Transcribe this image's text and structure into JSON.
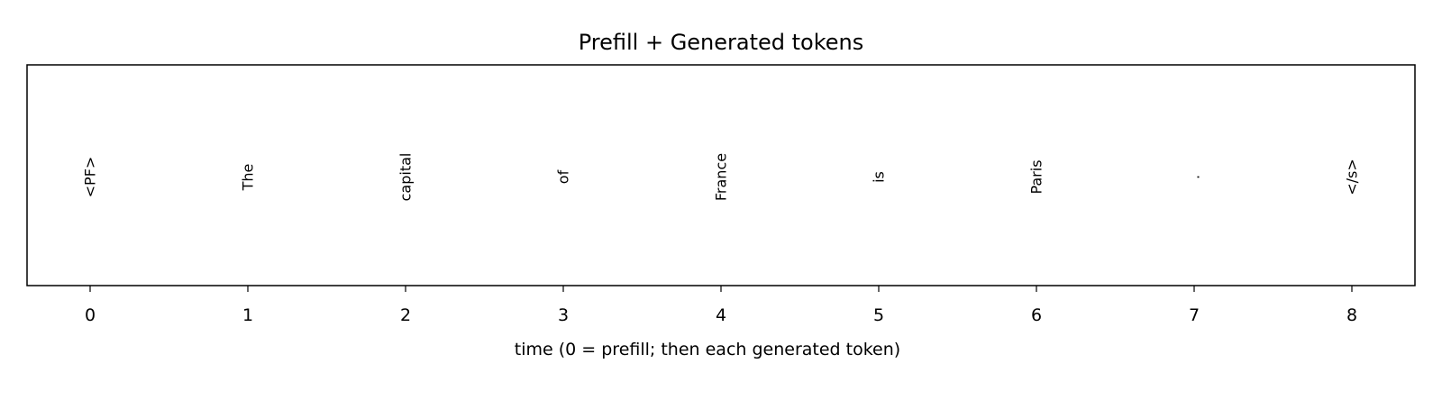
{
  "chart_data": {
    "type": "scatter",
    "title": "Prefill + Generated tokens",
    "xlabel": "time (0 = prefill; then each generated token)",
    "ylabel": "",
    "x": [
      0,
      1,
      2,
      3,
      4,
      5,
      6,
      7,
      8
    ],
    "tokens": [
      "<PF>",
      "The",
      "capital",
      "of",
      "France",
      "is",
      "Paris",
      ".",
      "</s>"
    ],
    "xlim": [
      -0.4,
      8.4
    ],
    "xticks": [
      0,
      1,
      2,
      3,
      4,
      5,
      6,
      7,
      8
    ],
    "y_axis_visible": false,
    "grid": false,
    "legend": "none"
  }
}
